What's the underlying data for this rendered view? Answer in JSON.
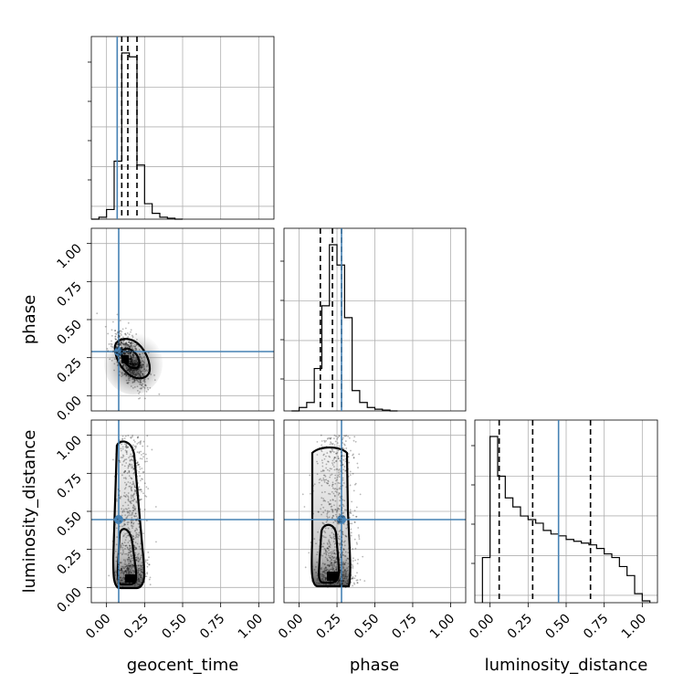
{
  "chart_data": {
    "type": "corner",
    "parameters": [
      "geocent_time",
      "phase",
      "luminosity_distance"
    ],
    "tick_labels": [
      "0.00",
      "0.25",
      "0.50",
      "0.75",
      "1.00"
    ],
    "ticks": [
      0,
      0.25,
      0.5,
      0.75,
      1.0
    ],
    "axis_range": [
      -0.1,
      1.1
    ],
    "truths": {
      "geocent_time": 0.07,
      "phase": 0.28,
      "luminosity_distance": 0.45
    },
    "marginals": [
      {
        "parameter": "geocent_time",
        "bin_edges": [
          -0.1,
          -0.05,
          0.0,
          0.05,
          0.1,
          0.15,
          0.2,
          0.25,
          0.3,
          0.35,
          0.4,
          0.45,
          0.5
        ],
        "counts": [
          0,
          0.01,
          0.05,
          0.3,
          0.86,
          0.84,
          0.28,
          0.08,
          0.03,
          0.01,
          0.005,
          0
        ],
        "quantiles": [
          0.1,
          0.14,
          0.2
        ]
      },
      {
        "parameter": "phase",
        "bin_edges": [
          -0.05,
          0.0,
          0.05,
          0.1,
          0.15,
          0.2,
          0.25,
          0.3,
          0.35,
          0.4,
          0.45,
          0.5,
          0.55,
          0.6,
          0.65
        ],
        "counts": [
          0,
          0.02,
          0.05,
          0.25,
          0.62,
          0.98,
          0.86,
          0.55,
          0.12,
          0.05,
          0.02,
          0.01,
          0.005,
          0
        ],
        "quantiles": [
          0.14,
          0.22,
          0.28
        ]
      },
      {
        "parameter": "luminosity_distance",
        "bin_edges": [
          -0.05,
          0.0,
          0.05,
          0.1,
          0.15,
          0.2,
          0.25,
          0.3,
          0.35,
          0.4,
          0.45,
          0.5,
          0.55,
          0.6,
          0.65,
          0.7,
          0.75,
          0.8,
          0.85,
          0.9,
          0.95,
          1.0,
          1.05
        ],
        "counts": [
          0.25,
          0.92,
          0.7,
          0.58,
          0.53,
          0.48,
          0.46,
          0.44,
          0.4,
          0.38,
          0.37,
          0.35,
          0.34,
          0.33,
          0.32,
          0.3,
          0.27,
          0.25,
          0.2,
          0.15,
          0.05,
          0.01
        ],
        "quantiles": [
          0.06,
          0.28,
          0.66
        ]
      }
    ],
    "joint_panels": [
      {
        "x": "geocent_time",
        "y": "phase"
      },
      {
        "x": "geocent_time",
        "y": "luminosity_distance"
      },
      {
        "x": "phase",
        "y": "luminosity_distance"
      }
    ],
    "grid": true,
    "truth_color": "#4682b4"
  }
}
